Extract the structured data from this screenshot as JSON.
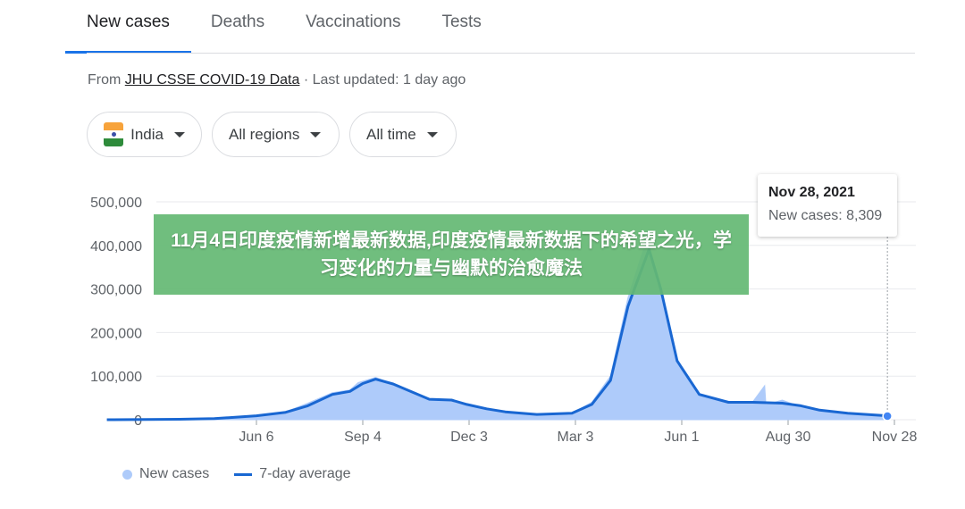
{
  "tabs": [
    {
      "label": "New cases",
      "active": true
    },
    {
      "label": "Deaths"
    },
    {
      "label": "Vaccinations"
    },
    {
      "label": "Tests"
    }
  ],
  "source": {
    "prefix": "From ",
    "link": "JHU CSSE COVID-19 Data",
    "suffix": " · Last updated: 1 day ago"
  },
  "filters": {
    "country": "India",
    "region": "All regions",
    "time": "All time"
  },
  "tooltip": {
    "date": "Nov 28, 2021",
    "value": "New cases: 8,309"
  },
  "legend": {
    "daily": "New cases",
    "average": "7-day average"
  },
  "colors": {
    "accent": "#1a73e8",
    "area": "#aecbfa",
    "line": "#1967d2",
    "banner": "#64b973"
  },
  "banner": "11月4日印度疫情新增最新数据,印度疫情最新数据下的希望之光，学习变化的力量与幽默的治愈魔法",
  "chart_data": {
    "type": "area",
    "ylim": [
      0,
      500000
    ],
    "yticks": [
      "0",
      "100,000",
      "200,000",
      "300,000",
      "400,000",
      "500,000"
    ],
    "xticks": [
      "Jun 6",
      "Sep 4",
      "Dec 3",
      "Mar 3",
      "Jun 1",
      "Aug 30",
      "Nov 28"
    ],
    "grid": true,
    "legend": "bottom-left",
    "series": [
      {
        "name": "New cases",
        "points": [
          [
            "2020-01-30",
            0
          ],
          [
            "2020-04-01",
            1500
          ],
          [
            "2020-05-01",
            2500
          ],
          [
            "2020-06-06",
            10000
          ],
          [
            "2020-07-01",
            18000
          ],
          [
            "2020-07-20",
            38000
          ],
          [
            "2020-08-10",
            62000
          ],
          [
            "2020-08-25",
            68000
          ],
          [
            "2020-09-01",
            85000
          ],
          [
            "2020-09-16",
            97000
          ],
          [
            "2020-10-01",
            82000
          ],
          [
            "2020-10-15",
            66000
          ],
          [
            "2020-11-01",
            46000
          ],
          [
            "2020-11-20",
            46000
          ],
          [
            "2020-12-03",
            36000
          ],
          [
            "2020-12-20",
            24000
          ],
          [
            "2021-01-05",
            18000
          ],
          [
            "2021-02-01",
            12000
          ],
          [
            "2021-03-03",
            15000
          ],
          [
            "2021-03-20",
            40000
          ],
          [
            "2021-04-05",
            100000
          ],
          [
            "2021-04-20",
            280000
          ],
          [
            "2021-05-06",
            414000
          ],
          [
            "2021-05-15",
            330000
          ],
          [
            "2021-06-01",
            128000
          ],
          [
            "2021-06-20",
            55000
          ],
          [
            "2021-07-15",
            38000
          ],
          [
            "2021-08-05",
            42000
          ],
          [
            "2021-08-15",
            78000
          ],
          [
            "2021-08-16",
            34000
          ],
          [
            "2021-08-30",
            45000
          ],
          [
            "2021-09-10",
            34000
          ],
          [
            "2021-10-01",
            22000
          ],
          [
            "2021-10-25",
            15000
          ],
          [
            "2021-11-28",
            8309
          ]
        ]
      },
      {
        "name": "7-day average",
        "points": [
          [
            "2020-01-30",
            0
          ],
          [
            "2020-04-01",
            1000
          ],
          [
            "2020-05-01",
            2500
          ],
          [
            "2020-06-06",
            9000
          ],
          [
            "2020-07-01",
            17000
          ],
          [
            "2020-07-20",
            32000
          ],
          [
            "2020-08-10",
            58000
          ],
          [
            "2020-08-25",
            65000
          ],
          [
            "2020-09-05",
            83000
          ],
          [
            "2020-09-16",
            93000
          ],
          [
            "2020-10-01",
            82000
          ],
          [
            "2020-10-15",
            66000
          ],
          [
            "2020-11-01",
            47000
          ],
          [
            "2020-11-20",
            45000
          ],
          [
            "2020-12-03",
            35000
          ],
          [
            "2020-12-20",
            25000
          ],
          [
            "2021-01-05",
            18000
          ],
          [
            "2021-02-01",
            12000
          ],
          [
            "2021-03-03",
            15000
          ],
          [
            "2021-03-20",
            35000
          ],
          [
            "2021-04-05",
            90000
          ],
          [
            "2021-04-20",
            260000
          ],
          [
            "2021-05-08",
            391000
          ],
          [
            "2021-05-18",
            300000
          ],
          [
            "2021-06-01",
            135000
          ],
          [
            "2021-06-20",
            58000
          ],
          [
            "2021-07-15",
            40000
          ],
          [
            "2021-08-05",
            40000
          ],
          [
            "2021-08-30",
            38000
          ],
          [
            "2021-09-15",
            32000
          ],
          [
            "2021-10-01",
            22000
          ],
          [
            "2021-10-25",
            15000
          ],
          [
            "2021-11-28",
            9000
          ]
        ]
      }
    ]
  }
}
